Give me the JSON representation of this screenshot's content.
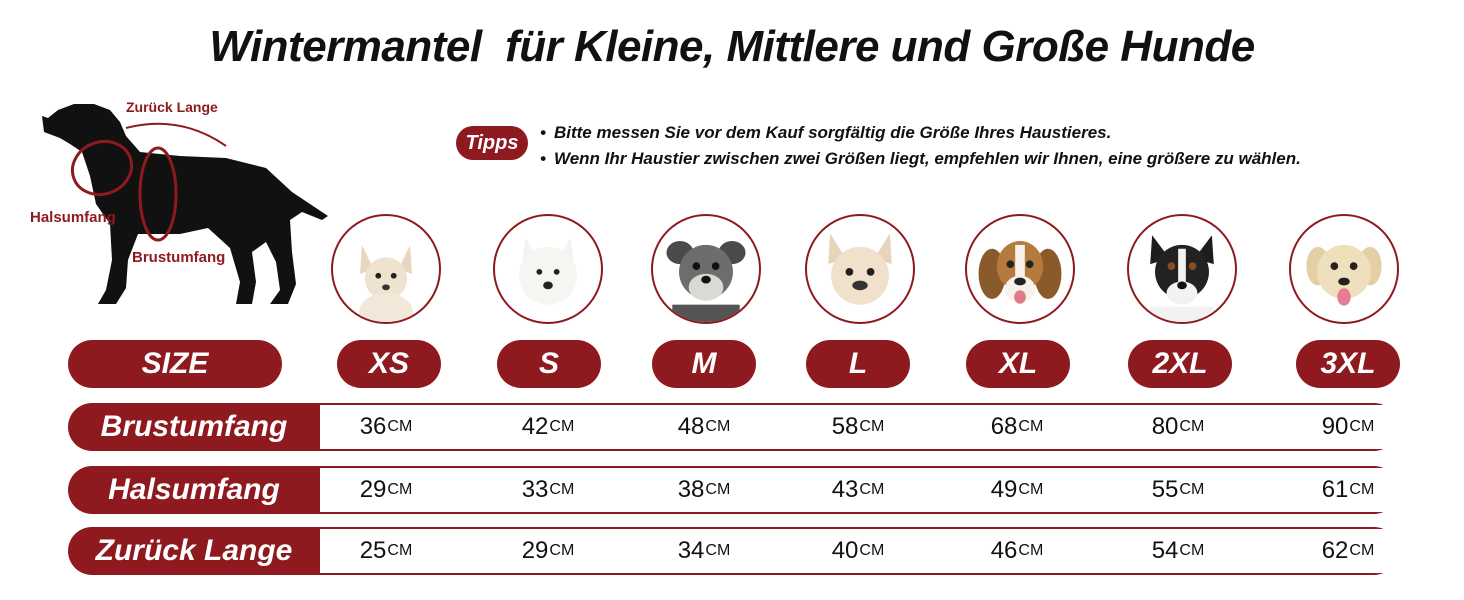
{
  "title": "Wintermantel  für Kleine, Mittlere und Große Hunde",
  "diagram": {
    "back_label": "Zurück Lange",
    "neck_label": "Halsumfang",
    "chest_label": "Brustumfang"
  },
  "tips": {
    "badge": "Tipps",
    "items": [
      "Bitte messen Sie vor dem Kauf sorgfältig die Größe Ihres Haustieres.",
      "Wenn Ihr Haustier zwischen zwei Größen liegt, empfehlen wir Ihnen, eine größere zu wählen."
    ]
  },
  "colors": {
    "accent": "#8e1a1f",
    "text": "#111111",
    "background": "#ffffff"
  },
  "table": {
    "size_header": "SIZE",
    "sizes": [
      "XS",
      "S",
      "M",
      "L",
      "XL",
      "2XL",
      "3XL"
    ],
    "unit": "CM",
    "rows": [
      {
        "label": "Brustumfang",
        "values": [
          "36",
          "42",
          "48",
          "58",
          "68",
          "80",
          "90"
        ]
      },
      {
        "label": "Halsumfang",
        "values": [
          "29",
          "33",
          "38",
          "43",
          "49",
          "55",
          "61"
        ]
      },
      {
        "label": "Zurück Lange",
        "values": [
          "25",
          "29",
          "34",
          "40",
          "46",
          "54",
          "62"
        ]
      }
    ]
  },
  "dog_avatars": [
    "chihuahua-icon",
    "west-highland-terrier-icon",
    "schnauzer-icon",
    "french-bulldog-icon",
    "beagle-icon",
    "border-collie-icon",
    "labrador-icon"
  ]
}
